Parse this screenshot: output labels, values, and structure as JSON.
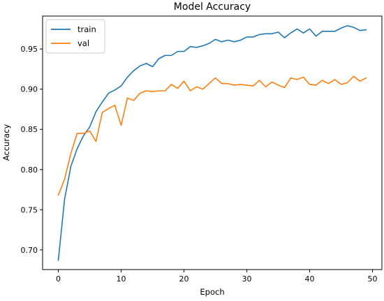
{
  "chart_data": {
    "type": "line",
    "title": "Model Accuracy",
    "xlabel": "Epoch",
    "ylabel": "Accuracy",
    "xlim": [
      -2.5,
      51.5
    ],
    "ylim": [
      0.6755,
      0.991
    ],
    "x_ticks": [
      0,
      10,
      20,
      30,
      40,
      50
    ],
    "y_ticks": [
      0.7,
      0.75,
      0.8,
      0.85,
      0.9,
      0.95
    ],
    "y_tick_labels": [
      "0.70",
      "0.75",
      "0.80",
      "0.85",
      "0.90",
      "0.95"
    ],
    "x_tick_labels": [
      "0",
      "10",
      "20",
      "30",
      "40",
      "50"
    ],
    "grid": false,
    "legend_position": "top-left",
    "x": [
      0,
      1,
      2,
      3,
      4,
      5,
      6,
      7,
      8,
      9,
      10,
      11,
      12,
      13,
      14,
      15,
      16,
      17,
      18,
      19,
      20,
      21,
      22,
      23,
      24,
      25,
      26,
      27,
      28,
      29,
      30,
      31,
      32,
      33,
      34,
      35,
      36,
      37,
      38,
      39,
      40,
      41,
      42,
      43,
      44,
      45,
      46,
      47,
      48,
      49
    ],
    "series": [
      {
        "name": "train",
        "color": "#1f77b4",
        "values": [
          0.687,
          0.763,
          0.804,
          0.826,
          0.842,
          0.853,
          0.872,
          0.884,
          0.895,
          0.899,
          0.904,
          0.915,
          0.923,
          0.929,
          0.932,
          0.928,
          0.938,
          0.942,
          0.942,
          0.947,
          0.947,
          0.953,
          0.952,
          0.954,
          0.957,
          0.962,
          0.959,
          0.961,
          0.959,
          0.961,
          0.965,
          0.965,
          0.968,
          0.969,
          0.969,
          0.971,
          0.964,
          0.97,
          0.975,
          0.97,
          0.975,
          0.966,
          0.972,
          0.972,
          0.972,
          0.976,
          0.979,
          0.977,
          0.973,
          0.974
        ]
      },
      {
        "name": "val",
        "color": "#ff7f0e",
        "values": [
          0.768,
          0.788,
          0.82,
          0.845,
          0.845,
          0.848,
          0.835,
          0.871,
          0.876,
          0.88,
          0.855,
          0.889,
          0.886,
          0.895,
          0.898,
          0.897,
          0.898,
          0.898,
          0.906,
          0.901,
          0.91,
          0.898,
          0.903,
          0.9,
          0.907,
          0.914,
          0.907,
          0.907,
          0.905,
          0.906,
          0.905,
          0.904,
          0.911,
          0.903,
          0.909,
          0.905,
          0.902,
          0.914,
          0.912,
          0.915,
          0.906,
          0.905,
          0.911,
          0.907,
          0.912,
          0.906,
          0.908,
          0.916,
          0.91,
          0.914
        ]
      }
    ]
  }
}
